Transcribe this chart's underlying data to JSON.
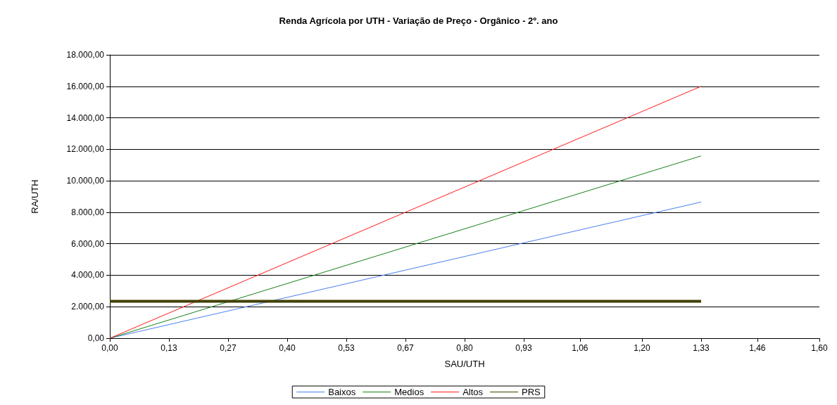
{
  "chart_data": {
    "type": "line",
    "title": "Renda Agrícola por UTH - Variação de Preço - Orgânico - 2º. ano",
    "xlabel": "SAU/UTH",
    "ylabel": "RA/UTH",
    "x": [
      0,
      1.3333
    ],
    "series": [
      {
        "name": "Baixos",
        "color": "#4a7ef0",
        "values": [
          0,
          8650
        ]
      },
      {
        "name": "Medios",
        "color": "#188018",
        "values": [
          0,
          11580
        ]
      },
      {
        "name": "Altos",
        "color": "#ff1a1a",
        "values": [
          0,
          16000
        ]
      },
      {
        "name": "PRS",
        "color": "#404000",
        "values": [
          2350,
          2350
        ]
      }
    ],
    "xlim": [
      0,
      1.6
    ],
    "xticks": [
      {
        "value": 0,
        "label": "0,00"
      },
      {
        "value": 0.1333,
        "label": "0,13"
      },
      {
        "value": 0.2667,
        "label": "0,27"
      },
      {
        "value": 0.4,
        "label": "0,40"
      },
      {
        "value": 0.5333,
        "label": "0,53"
      },
      {
        "value": 0.6667,
        "label": "0,67"
      },
      {
        "value": 0.8,
        "label": "0,80"
      },
      {
        "value": 0.9333,
        "label": "0,93"
      },
      {
        "value": 1.06,
        "label": "1,06"
      },
      {
        "value": 1.2,
        "label": "1,20"
      },
      {
        "value": 1.3333,
        "label": "1,33"
      },
      {
        "value": 1.46,
        "label": "1,46"
      },
      {
        "value": 1.6,
        "label": "1,60"
      }
    ],
    "ylim": [
      0,
      18000
    ],
    "yticks": [
      {
        "value": 0,
        "label": "0,00"
      },
      {
        "value": 2000,
        "label": "2.000,00"
      },
      {
        "value": 4000,
        "label": "4.000,00"
      },
      {
        "value": 6000,
        "label": "6.000,00"
      },
      {
        "value": 8000,
        "label": "8.000,00"
      },
      {
        "value": 10000,
        "label": "10.000,00"
      },
      {
        "value": 12000,
        "label": "12.000,00"
      },
      {
        "value": 14000,
        "label": "14.000,00"
      },
      {
        "value": 16000,
        "label": "16.000,00"
      },
      {
        "value": 18000,
        "label": "18.000,00"
      }
    ],
    "grid": "y",
    "legend": "bottom"
  }
}
